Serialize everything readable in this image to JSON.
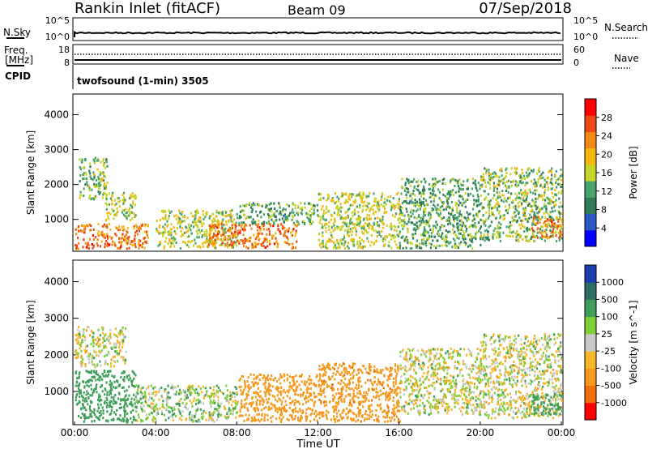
{
  "header": {
    "station": "Rankin Inlet (fitACF)",
    "beam": "Beam 09",
    "date": "07/Sep/2018"
  },
  "top_panel": {
    "left_label": "N.Sky",
    "right_label": "N.Search",
    "left_ticks": [
      "10^5",
      "10^0"
    ],
    "right_ticks": [
      "10^5",
      "10^0"
    ],
    "freq_label_1": "Freq.",
    "freq_label_2": "[MHz]",
    "freq_ticks": [
      "18",
      "8"
    ],
    "nave_label": "Nave",
    "nave_ticks": [
      "60",
      "0"
    ],
    "cpid_label": "CPID",
    "cpid_text": "twofsound (1-min) 3505"
  },
  "x_axis": {
    "label": "Time UT",
    "ticks": [
      "00:00",
      "04:00",
      "08:00",
      "12:00",
      "16:00",
      "20:00",
      "00:00"
    ]
  },
  "chart_data": [
    {
      "type": "heatmap",
      "variable": "Power",
      "ylabel": "Slant Range [km]",
      "yticks": [
        1000,
        2000,
        3000,
        4000
      ],
      "ylim": [
        180,
        4500
      ],
      "xlabel": "Time UT",
      "colorbar_label": "Power [dB]",
      "colorbar_ticks": [
        "28",
        "24",
        "20",
        "16",
        "12",
        "8",
        "4"
      ],
      "colorbar_range": [
        0,
        32
      ],
      "colorbar_colors": [
        "#0000ff",
        "#2a5bc4",
        "#2f7c56",
        "#4aa36a",
        "#c7d42a",
        "#f5b812",
        "#f08a16",
        "#e94a14",
        "#ff0000"
      ],
      "scatter_regions": [
        {
          "t": [
            0.0,
            3.6
          ],
          "r": [
            180,
            900
          ],
          "value": 24
        },
        {
          "t": [
            0.2,
            1.6
          ],
          "r": [
            1600,
            2800
          ],
          "value": 14
        },
        {
          "t": [
            1.5,
            3.0
          ],
          "r": [
            1000,
            1800
          ],
          "value": 16
        },
        {
          "t": [
            4.0,
            8.0
          ],
          "r": [
            200,
            1300
          ],
          "value": 16
        },
        {
          "t": [
            6.5,
            11.0
          ],
          "r": [
            200,
            900
          ],
          "value": 24
        },
        {
          "t": [
            8.0,
            12.0
          ],
          "r": [
            900,
            1500
          ],
          "value": 12
        },
        {
          "t": [
            12.0,
            16.0
          ],
          "r": [
            200,
            1800
          ],
          "value": 16
        },
        {
          "t": [
            16.0,
            20.0
          ],
          "r": [
            200,
            2200
          ],
          "value": 12
        },
        {
          "t": [
            20.0,
            24.0
          ],
          "r": [
            400,
            2500
          ],
          "value": 14
        },
        {
          "t": [
            22.5,
            24.0
          ],
          "r": [
            500,
            1100
          ],
          "value": 24
        }
      ]
    },
    {
      "type": "heatmap",
      "variable": "Velocity",
      "ylabel": "Slant Range [km]",
      "yticks": [
        1000,
        2000,
        3000,
        4000
      ],
      "ylim": [
        180,
        4500
      ],
      "xlabel": "Time UT",
      "colorbar_label": "Velocity [m s^-1]",
      "colorbar_ticks": [
        "1000",
        "500",
        "100",
        "25",
        "-25",
        "-100",
        "-500",
        "-1000"
      ],
      "colorbar_colors": [
        "#1c3fb0",
        "#2f6e66",
        "#3f9e5a",
        "#7fcf3a",
        "#c8c8c8",
        "#f5b82a",
        "#f59a1e",
        "#f07010",
        "#ff0000"
      ],
      "scatter_regions": [
        {
          "t": [
            0.0,
            3.0
          ],
          "r": [
            180,
            1600
          ],
          "value": 300
        },
        {
          "t": [
            0.0,
            2.5
          ],
          "r": [
            1700,
            2800
          ],
          "value": 0
        },
        {
          "t": [
            3.0,
            8.0
          ],
          "r": [
            200,
            1200
          ],
          "value": 50
        },
        {
          "t": [
            8.0,
            12.0
          ],
          "r": [
            200,
            1500
          ],
          "value": -300
        },
        {
          "t": [
            12.0,
            16.0
          ],
          "r": [
            200,
            1800
          ],
          "value": -400
        },
        {
          "t": [
            16.0,
            20.0
          ],
          "r": [
            400,
            2200
          ],
          "value": 0
        },
        {
          "t": [
            20.0,
            24.0
          ],
          "r": [
            300,
            2600
          ],
          "value": 0
        },
        {
          "t": [
            22.5,
            24.0
          ],
          "r": [
            400,
            1000
          ],
          "value": 300
        }
      ]
    }
  ]
}
